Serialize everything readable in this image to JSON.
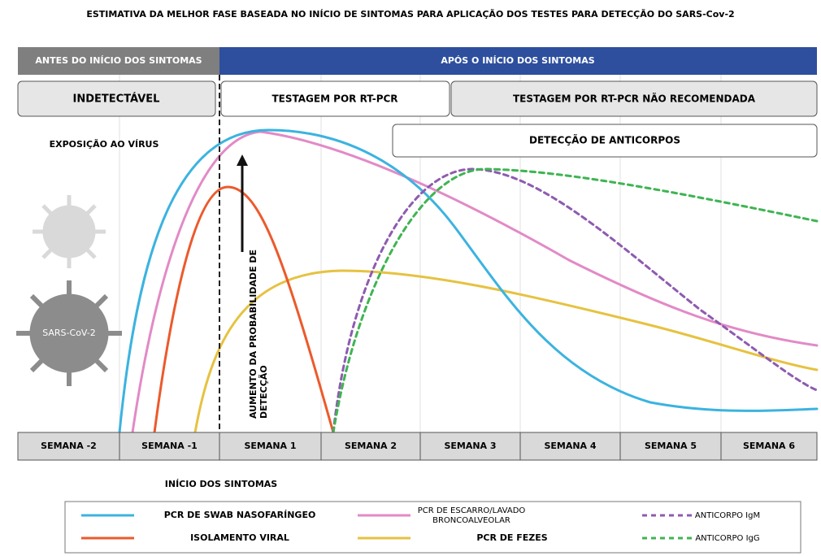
{
  "title": "ESTIMATIVA DA MELHOR FASE BASEADA NO INÍCIO DE SINTOMAS PARA APLICAÇÃO DOS TESTES PARA DETECÇÃO DO SARS-Cov-2",
  "header": {
    "before": "ANTES DO INÍCIO DOS SINTOMAS",
    "after": "APÓS O INÍCIO DOS SINTOMAS"
  },
  "phases": {
    "undetectable": "INDETECTÁVEL",
    "rtpcr": "TESTAGEM POR RT-PCR",
    "not_recommended": "TESTAGEM POR RT-PCR NÃO RECOMENDADA",
    "antibodies": "DETECÇÃO DE ANTICORPOS"
  },
  "exposure": "EXPOSIÇÃO AO VÍRUS",
  "virus_label": "SARS-CoV-2",
  "arrow_label": [
    "AUMENTO DA PROBABILIDADE DE",
    "DETECÇÃO"
  ],
  "weeks": [
    "SEMANA -2",
    "SEMANA -1",
    "SEMANA 1",
    "SEMANA 2",
    "SEMANA 3",
    "SEMANA 4",
    "SEMANA 5",
    "SEMANA 6"
  ],
  "onset": "INÍCIO DOS SINTOMAS",
  "legend": [
    {
      "label": "PCR DE SWAB NASOFARÍNGEO",
      "color": "#3bb3e0",
      "dashed": false
    },
    {
      "label": "PCR DE ESCARRO/LAVADO BRONCOALVEOLAR",
      "color": "#e28ac6",
      "dashed": false
    },
    {
      "label": "ANTICORPO IgM",
      "color": "#8e5bb0",
      "dashed": true
    },
    {
      "label": "ISOLAMENTO VIRAL",
      "color": "#ec5a2c",
      "dashed": false
    },
    {
      "label": "PCR DE FEZES",
      "color": "#e6c240",
      "dashed": false
    },
    {
      "label": "ANTICORPO IgG",
      "color": "#3fb452",
      "dashed": true
    }
  ]
}
